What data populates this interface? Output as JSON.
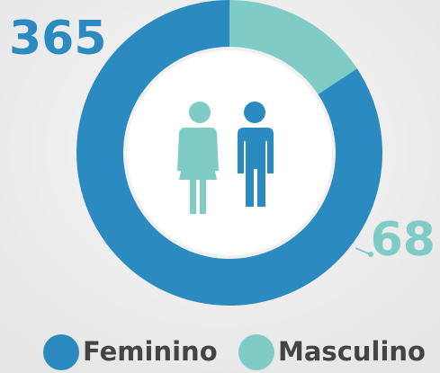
{
  "chart_data": {
    "type": "pie",
    "categories": [
      "Feminino",
      "Masculino"
    ],
    "values": [
      365,
      68
    ],
    "colors": [
      "#2b8bc0",
      "#7fcbc6"
    ]
  }
}
